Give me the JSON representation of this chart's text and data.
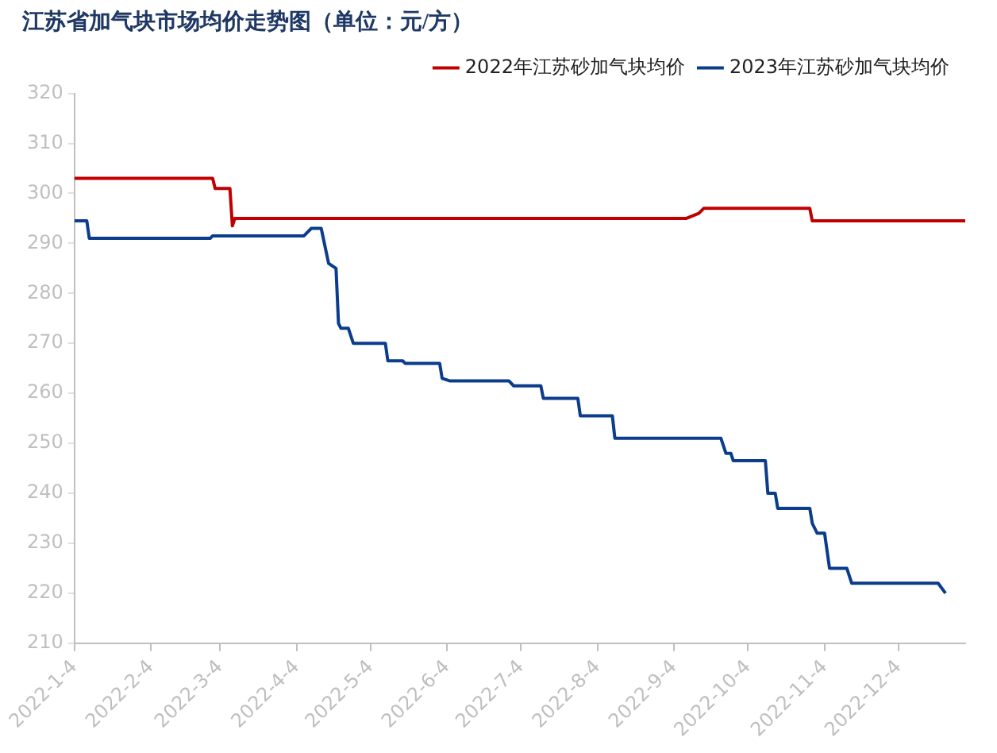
{
  "chart_data": {
    "type": "line",
    "title": "江苏省加气块市场均价走势图（单位：元/方）",
    "xlim": [
      "2022-01-04",
      "2022-12-31"
    ],
    "xticks": [
      {
        "value": "2022-01-04",
        "label": "2022-1-4"
      },
      {
        "value": "2022-02-04",
        "label": "2022-2-4"
      },
      {
        "value": "2022-03-04",
        "label": "2022-3-4"
      },
      {
        "value": "2022-04-04",
        "label": "2022-4-4"
      },
      {
        "value": "2022-05-04",
        "label": "2022-5-4"
      },
      {
        "value": "2022-06-04",
        "label": "2022-6-4"
      },
      {
        "value": "2022-07-04",
        "label": "2022-7-4"
      },
      {
        "value": "2022-08-04",
        "label": "2022-8-4"
      },
      {
        "value": "2022-09-04",
        "label": "2022-9-4"
      },
      {
        "value": "2022-10-04",
        "label": "2022-10-4"
      },
      {
        "value": "2022-11-04",
        "label": "2022-11-4"
      },
      {
        "value": "2022-12-04",
        "label": "2022-12-4"
      }
    ],
    "ylim": [
      210,
      320
    ],
    "yticks": [
      210,
      220,
      230,
      240,
      250,
      260,
      270,
      280,
      290,
      300,
      310,
      320
    ],
    "grid": false,
    "legend": "top right",
    "marker": "none",
    "line_style": "solid",
    "series": [
      {
        "name": "2022年江苏砂加气块均价",
        "color": "#c00000",
        "x": [
          "2022-01-04",
          "2022-03-01",
          "2022-03-02",
          "2022-03-08",
          "2022-03-09",
          "2022-03-10",
          "2022-09-09",
          "2022-09-14",
          "2022-09-16",
          "2022-10-29",
          "2022-10-30",
          "2022-12-31"
        ],
        "values": [
          303,
          303,
          301,
          301,
          293.5,
          295,
          295,
          296,
          297,
          297,
          294.5,
          294.5
        ]
      },
      {
        "name": "2023年江苏砂加气块均价",
        "color": "#0b3d8c",
        "x": [
          "2022-01-04",
          "2022-01-09",
          "2022-01-10",
          "2022-02-28",
          "2022-03-01",
          "2022-04-07",
          "2022-04-10",
          "2022-04-14",
          "2022-04-17",
          "2022-04-20",
          "2022-04-21",
          "2022-04-22",
          "2022-04-25",
          "2022-04-27",
          "2022-05-10",
          "2022-05-11",
          "2022-05-17",
          "2022-05-18",
          "2022-06-01",
          "2022-06-02",
          "2022-06-05",
          "2022-06-29",
          "2022-07-01",
          "2022-07-12",
          "2022-07-13",
          "2022-07-27",
          "2022-07-28",
          "2022-08-10",
          "2022-08-11",
          "2022-09-23",
          "2022-09-25",
          "2022-09-27",
          "2022-09-28",
          "2022-10-11",
          "2022-10-12",
          "2022-10-15",
          "2022-10-16",
          "2022-10-29",
          "2022-10-30",
          "2022-11-01",
          "2022-11-04",
          "2022-11-06",
          "2022-11-13",
          "2022-11-15",
          "2022-12-20",
          "2022-12-23"
        ],
        "values": [
          294.5,
          294.5,
          291,
          291,
          291.5,
          291.5,
          293,
          293,
          286,
          285,
          274,
          273,
          273,
          270,
          270,
          266.5,
          266.5,
          266,
          266,
          263,
          262.5,
          262.5,
          261.5,
          261.5,
          259,
          259,
          255.5,
          255.5,
          251,
          251,
          248,
          248,
          246.5,
          246.5,
          240,
          240,
          237,
          237,
          234,
          232,
          232,
          225,
          225,
          222,
          222,
          220
        ]
      }
    ]
  }
}
